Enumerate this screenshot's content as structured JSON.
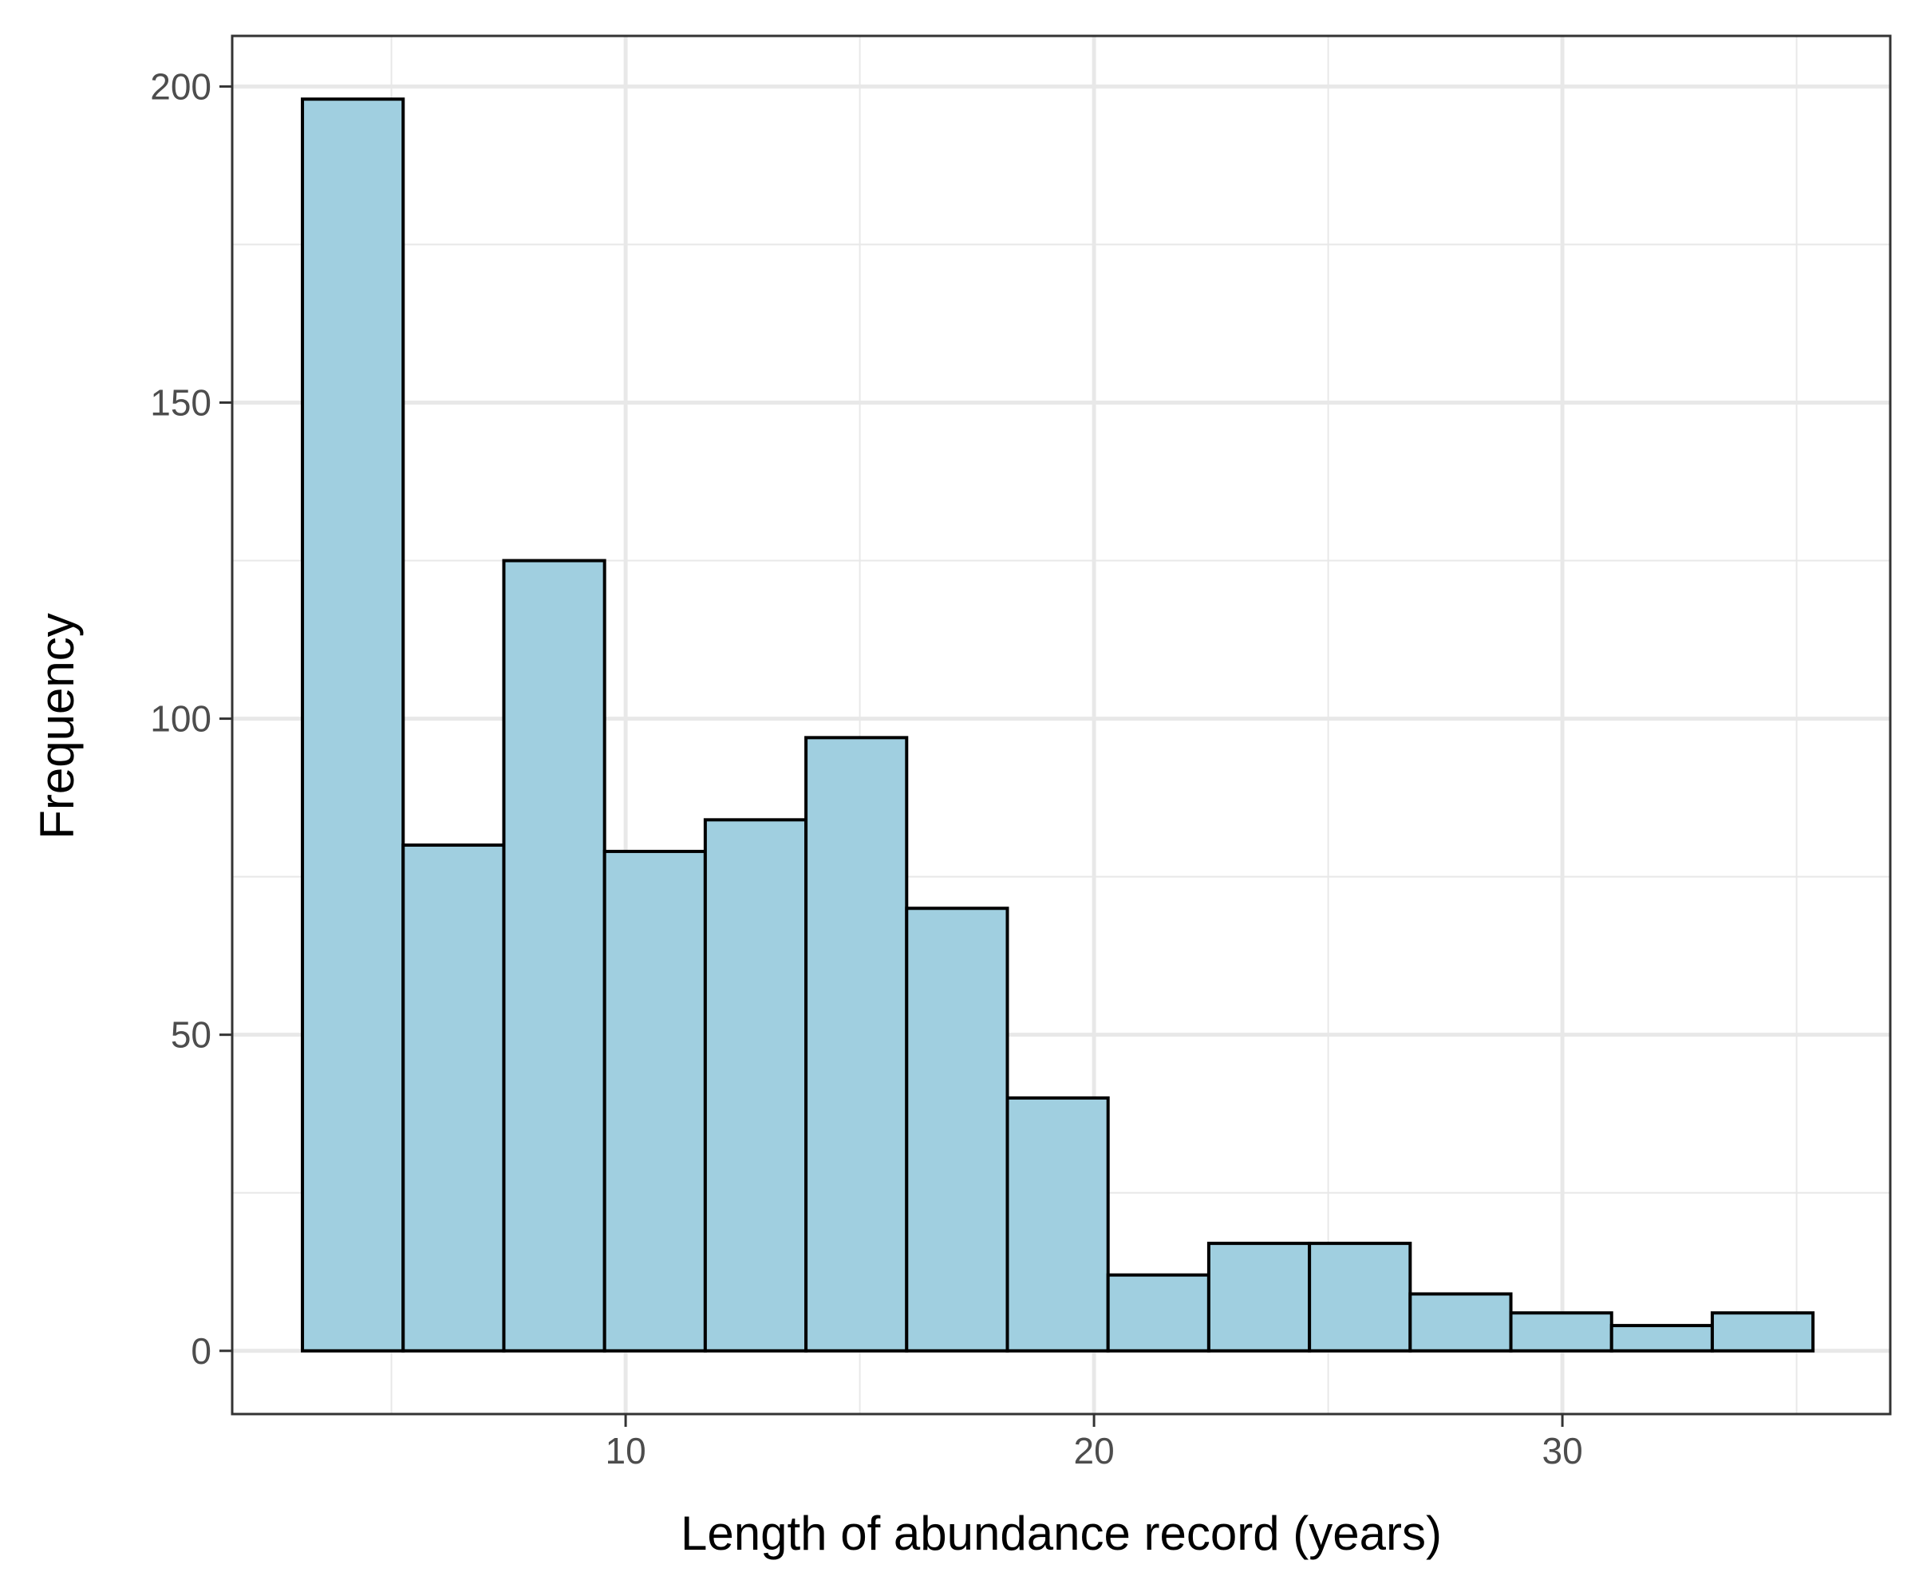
{
  "chart_data": {
    "type": "bar",
    "subtype": "histogram",
    "title": "",
    "xlabel": "Length of abundance record (years)",
    "ylabel": "Frequency",
    "xlim": [
      1.6,
      37.0
    ],
    "ylim": [
      -10,
      208
    ],
    "x_ticks": [
      10,
      20,
      30
    ],
    "y_ticks": [
      0,
      50,
      100,
      150,
      200
    ],
    "x_minor_gridlines": [
      5,
      15,
      25,
      35
    ],
    "y_minor_gridlines": [
      25,
      75,
      125,
      175
    ],
    "grid": true,
    "legend": "none",
    "bin_width": 2.15,
    "bins": [
      {
        "start": 3.1,
        "end": 5.25,
        "value": 198
      },
      {
        "start": 5.25,
        "end": 7.4,
        "value": 80
      },
      {
        "start": 7.4,
        "end": 9.55,
        "value": 125
      },
      {
        "start": 9.55,
        "end": 11.7,
        "value": 79
      },
      {
        "start": 11.7,
        "end": 13.85,
        "value": 84
      },
      {
        "start": 13.85,
        "end": 16.0,
        "value": 97
      },
      {
        "start": 16.0,
        "end": 18.15,
        "value": 70
      },
      {
        "start": 18.15,
        "end": 20.3,
        "value": 40
      },
      {
        "start": 20.3,
        "end": 22.45,
        "value": 12
      },
      {
        "start": 22.45,
        "end": 24.6,
        "value": 17
      },
      {
        "start": 24.6,
        "end": 26.75,
        "value": 17
      },
      {
        "start": 26.75,
        "end": 28.9,
        "value": 9
      },
      {
        "start": 28.9,
        "end": 31.05,
        "value": 6
      },
      {
        "start": 31.05,
        "end": 33.2,
        "value": 4
      },
      {
        "start": 33.2,
        "end": 35.35,
        "value": 6
      }
    ],
    "colors": {
      "bar_fill": "#a0cfe0",
      "bar_stroke": "#000000",
      "grid": "#e8e8e8",
      "panel_border": "#333333",
      "tick_text": "#4d4d4d"
    }
  }
}
